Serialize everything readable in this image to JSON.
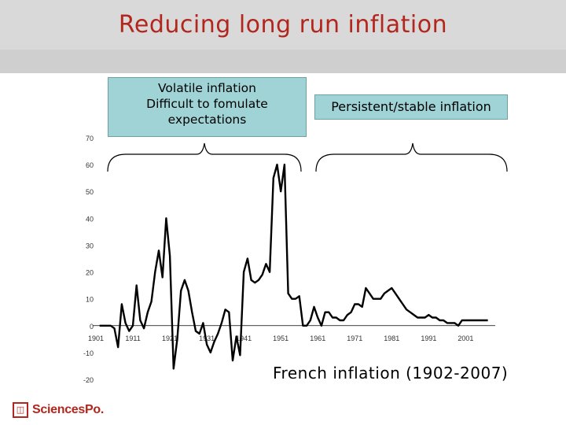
{
  "slide": {
    "title": "Reducing long run inflation",
    "callout_left_lines": [
      "Volatile inflation",
      "Difficult to fomulate",
      "expectations"
    ],
    "callout_right": "Persistent/stable inflation",
    "caption": "French inflation (1902-2007)",
    "logo_text": "SciencesPo."
  },
  "colors": {
    "title": "#b3261e",
    "callout_fill": "#9fd3d6",
    "line": "#000000",
    "logo": "#b3261e"
  },
  "chart_data": {
    "type": "line",
    "title": "",
    "xlabel": "",
    "ylabel": "",
    "x_ticks": [
      "1901",
      "1911",
      "1921",
      "1931",
      "1941",
      "1951",
      "1961",
      "1971",
      "1981",
      "1991",
      "2001"
    ],
    "y_ticks": [
      70,
      60,
      50,
      40,
      30,
      20,
      10,
      0,
      -10,
      -20
    ],
    "ylim": [
      -20,
      70
    ],
    "xlim": [
      1901,
      2009
    ],
    "grid": false,
    "series": [
      {
        "x": [
          1902,
          1903,
          1904,
          1905,
          1906,
          1907,
          1908,
          1909,
          1910,
          1911,
          1912,
          1913,
          1914,
          1915,
          1916,
          1917,
          1918,
          1919,
          1920,
          1921,
          1922,
          1923,
          1924,
          1925,
          1926,
          1927,
          1928,
          1929,
          1930,
          1931,
          1932,
          1933,
          1934,
          1935,
          1936,
          1937,
          1938,
          1939,
          1940,
          1941,
          1942,
          1943,
          1944,
          1945,
          1946,
          1947,
          1948,
          1949,
          1950,
          1951,
          1952,
          1953,
          1954,
          1955,
          1956,
          1957,
          1958,
          1959,
          1960,
          1961,
          1962,
          1963,
          1964,
          1965,
          1966,
          1967,
          1968,
          1969,
          1970,
          1971,
          1972,
          1973,
          1974,
          1975,
          1976,
          1977,
          1978,
          1979,
          1980,
          1981,
          1982,
          1983,
          1984,
          1985,
          1986,
          1987,
          1988,
          1989,
          1990,
          1991,
          1992,
          1993,
          1994,
          1995,
          1996,
          1997,
          1998,
          1999,
          2000,
          2001,
          2002,
          2003,
          2004,
          2005,
          2006,
          2007
        ],
        "y": [
          0,
          0,
          0,
          0,
          -1,
          -8,
          8,
          1,
          -2,
          0,
          15,
          2,
          -1,
          5,
          9,
          20,
          28,
          18,
          40,
          26,
          -16,
          -5,
          13,
          17,
          13,
          5,
          -2,
          -3,
          1,
          -7,
          -10,
          -6,
          -3,
          1,
          6,
          5,
          -13,
          -4,
          -11,
          20,
          25,
          17,
          16,
          17,
          19,
          23,
          20,
          55,
          60,
          50,
          60,
          12,
          10,
          10,
          11,
          0,
          0,
          2,
          7,
          3,
          0,
          5,
          5,
          3,
          3,
          2,
          2,
          4,
          5,
          8,
          8,
          7,
          14,
          12,
          10,
          10,
          10,
          12,
          13,
          14,
          12,
          10,
          8,
          6,
          5,
          4,
          3,
          3,
          3,
          4,
          3,
          3,
          2,
          2,
          1,
          1,
          1,
          0,
          2,
          2,
          2,
          2,
          2,
          2,
          2,
          2
        ]
      }
    ]
  }
}
